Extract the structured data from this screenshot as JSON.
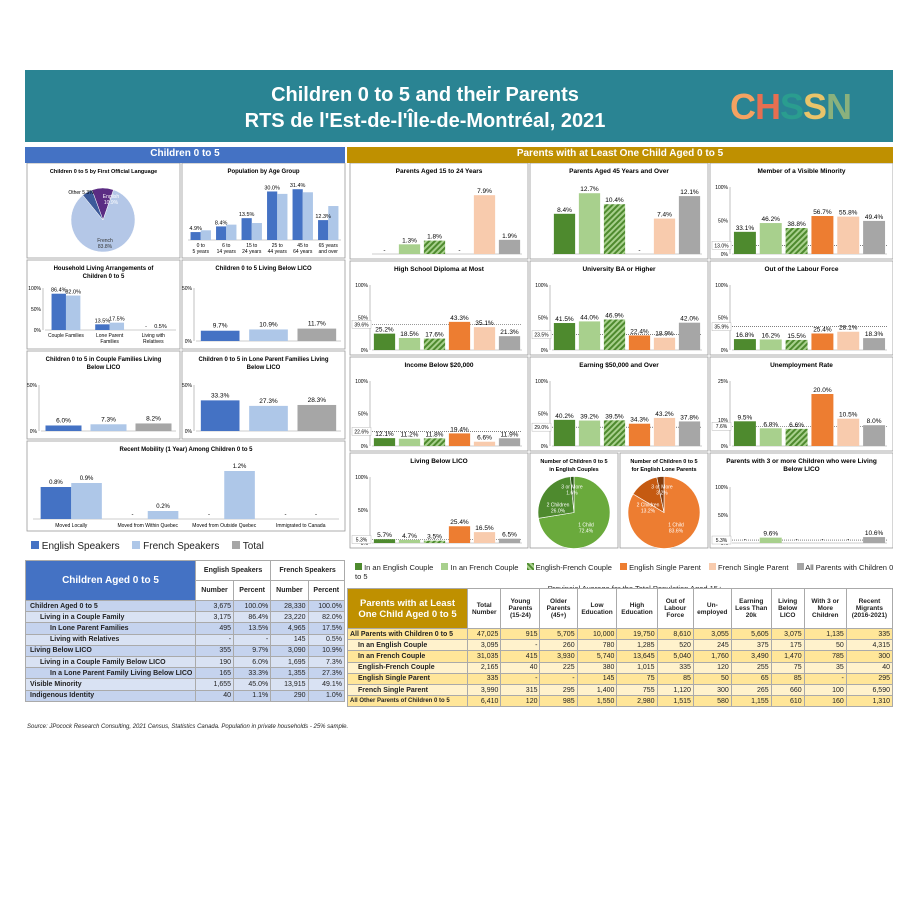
{
  "header": {
    "title_line1": "Children 0 to 5 and their Parents",
    "title_line2": "RTS de l'Est-de-l'Île-de-Montréal, 2021",
    "logo": "CHSSN"
  },
  "sections": {
    "left": "Children 0 to 5",
    "right": "Parents with at Least One Child Aged 0 to 5"
  },
  "colors": {
    "teal": "#2a8493",
    "blue_header": "#4472c4",
    "gold_header": "#bf9000",
    "eng": "#4472c4",
    "fr": "#aec7e8",
    "total": "#a6a6a6",
    "p_eng_couple": "#4e8a2e",
    "p_fr_couple": "#a8d08d",
    "p_ef_couple": "#4e8a2e",
    "p_eng_single": "#ed7d31",
    "p_fr_single": "#f8cbad",
    "p_all": "#a6a6a6"
  },
  "chart_data": [
    {
      "type": "pie",
      "title": "Children 0 to 5 by First Official Language",
      "labels": [
        "English",
        "French",
        "Other"
      ],
      "values": [
        10.9,
        83.8,
        5.3
      ],
      "display": [
        "10.9%",
        "83.8%",
        "5.3%"
      ]
    },
    {
      "type": "bar",
      "title": "Population by Age Group",
      "categories": [
        "0 to 5 years",
        "6 to 14 years",
        "15 to 24 years",
        "25 to 44 years",
        "45 to 64 years",
        "65 years and over"
      ],
      "series": [
        {
          "name": "English Speakers",
          "values": [
            4.9,
            8.4,
            13.5,
            30.0,
            31.4,
            12.3
          ],
          "labels": [
            "4.9%",
            "8.4%",
            "13.5%",
            "30.0%",
            "31.4%",
            "12.3%"
          ]
        },
        {
          "name": "French Speakers",
          "values": [
            6.0,
            9.5,
            10.5,
            28.5,
            29.5,
            21.0
          ]
        }
      ]
    },
    {
      "type": "bar",
      "title": "Household Living Arrangements of Children 0 to 5",
      "categories": [
        "Couple Families",
        "Lone Parent Families",
        "Living with Relatives"
      ],
      "ylim": [
        0,
        100
      ],
      "yticks": [
        "100%",
        "50%",
        "0%"
      ],
      "series": [
        {
          "name": "English Speakers",
          "values": [
            86.4,
            13.5,
            0
          ],
          "labels": [
            "86.4%",
            "13.5%",
            "-"
          ]
        },
        {
          "name": "French Speakers",
          "values": [
            82.0,
            17.5,
            0.5
          ],
          "labels": [
            "82.0%",
            "17.5%",
            "0.5%"
          ]
        }
      ]
    },
    {
      "type": "bar",
      "title": "Children 0 to 5 Living Below LICO",
      "ylim": [
        0,
        50
      ],
      "yticks": [
        "50%",
        "0%"
      ],
      "series": [
        {
          "name": "English Speakers",
          "values": [
            9.7
          ],
          "labels": [
            "9.7%"
          ]
        },
        {
          "name": "French Speakers",
          "values": [
            10.9
          ],
          "labels": [
            "10.9%"
          ]
        },
        {
          "name": "Total",
          "values": [
            11.7
          ],
          "labels": [
            "11.7%"
          ]
        }
      ]
    },
    {
      "type": "bar",
      "title": "Children 0 to 5 in Couple Families Living Below LICO",
      "ylim": [
        0,
        50
      ],
      "yticks": [
        "50%",
        "0%"
      ],
      "series": [
        {
          "name": "English Speakers",
          "values": [
            6.0
          ],
          "labels": [
            "6.0%"
          ]
        },
        {
          "name": "French Speakers",
          "values": [
            7.3
          ],
          "labels": [
            "7.3%"
          ]
        },
        {
          "name": "Total",
          "values": [
            8.2
          ],
          "labels": [
            "8.2%"
          ]
        }
      ]
    },
    {
      "type": "bar",
      "title": "Children 0 to 5 in Lone Parent Families Living Below LICO",
      "ylim": [
        0,
        50
      ],
      "yticks": [
        "50%",
        "0%"
      ],
      "series": [
        {
          "name": "English Speakers",
          "values": [
            33.3
          ],
          "labels": [
            "33.3%"
          ]
        },
        {
          "name": "French Speakers",
          "values": [
            27.3
          ],
          "labels": [
            "27.3%"
          ]
        },
        {
          "name": "Total",
          "values": [
            28.3
          ],
          "labels": [
            "28.3%"
          ]
        }
      ]
    },
    {
      "type": "bar",
      "title": "Recent Mobility (1 Year) Among Children 0 to 5",
      "categories": [
        "Moved Locally",
        "Moved from Within Quebec",
        "Moved from Outside Quebec",
        "Immigrated to Canada"
      ],
      "series": [
        {
          "name": "English Speakers",
          "values": [
            0.8,
            0,
            0,
            0
          ],
          "labels": [
            "0.8%",
            "-",
            "-",
            "-"
          ]
        },
        {
          "name": "French Speakers",
          "values": [
            0.9,
            0.2,
            1.2,
            0
          ],
          "labels": [
            "0.9%",
            "0.2%",
            "1.2%",
            "-"
          ]
        }
      ]
    },
    {
      "type": "bar",
      "title": "Parents Aged 15 to 24 Years",
      "series_values": [
        0,
        1.3,
        1.8,
        0,
        7.9,
        1.9
      ],
      "labels": [
        "-",
        "1.3%",
        "1.8%",
        "-",
        "7.9%",
        "1.9%"
      ],
      "ymax": 9
    },
    {
      "type": "bar",
      "title": "Parents Aged 45 Years and Over",
      "series_values": [
        8.4,
        12.7,
        10.4,
        0,
        7.4,
        12.1
      ],
      "labels": [
        "8.4%",
        "12.7%",
        "10.4%",
        "-",
        "7.4%",
        "12.1%"
      ],
      "ymax": 14
    },
    {
      "type": "bar",
      "title": "Member of a Visible Minority",
      "ylim": [
        0,
        100
      ],
      "yticks": [
        "100%",
        "50%",
        "0%"
      ],
      "provincial": "13.0%",
      "provincial_value": 13.0,
      "series_values": [
        33.1,
        46.2,
        38.8,
        56.7,
        55.8,
        49.4
      ],
      "labels": [
        "33.1%",
        "46.2%",
        "38.8%",
        "56.7%",
        "55.8%",
        "49.4%"
      ]
    },
    {
      "type": "bar",
      "title": "High School Diploma at Most",
      "ylim": [
        0,
        100
      ],
      "yticks": [
        "100%",
        "50%",
        "0%"
      ],
      "provincial": "39.6%",
      "provincial_value": 39.6,
      "series_values": [
        25.2,
        18.5,
        17.6,
        43.3,
        35.1,
        21.3
      ],
      "labels": [
        "25.2%",
        "18.5%",
        "17.6%",
        "43.3%",
        "35.1%",
        "21.3%"
      ]
    },
    {
      "type": "bar",
      "title": "University BA or Higher",
      "ylim": [
        0,
        100
      ],
      "yticks": [
        "100%",
        "50%",
        "0%"
      ],
      "provincial": "23.5%",
      "provincial_value": 23.5,
      "series_values": [
        41.5,
        44.0,
        46.9,
        22.4,
        18.9,
        42.0
      ],
      "labels": [
        "41.5%",
        "44.0%",
        "46.9%",
        "22.4%",
        "18.9%",
        "42.0%"
      ]
    },
    {
      "type": "bar",
      "title": "Out of the Labour Force",
      "ylim": [
        0,
        100
      ],
      "yticks": [
        "100%",
        "50%",
        "0%"
      ],
      "provincial": "35.9%",
      "provincial_value": 35.9,
      "series_values": [
        16.8,
        16.2,
        15.5,
        25.4,
        28.1,
        18.3
      ],
      "labels": [
        "16.8%",
        "16.2%",
        "15.5%",
        "25.4%",
        "28.1%",
        "18.3%"
      ]
    },
    {
      "type": "bar",
      "title": "Income Below $20,000",
      "ylim": [
        0,
        100
      ],
      "yticks": [
        "100%",
        "50%",
        "0%"
      ],
      "provincial": "22.6%",
      "provincial_value": 22.6,
      "series_values": [
        12.1,
        11.2,
        11.8,
        19.4,
        6.6,
        11.9
      ],
      "labels": [
        "12.1%",
        "11.2%",
        "11.8%",
        "19.4%",
        "6.6%",
        "11.9%"
      ]
    },
    {
      "type": "bar",
      "title": "Earning $50,000 and Over",
      "ylim": [
        0,
        100
      ],
      "yticks": [
        "100%",
        "50%",
        "0%"
      ],
      "provincial": "29.0%",
      "provincial_value": 29.0,
      "series_values": [
        40.2,
        39.2,
        39.5,
        34.3,
        43.2,
        37.8
      ],
      "labels": [
        "40.2%",
        "39.2%",
        "39.5%",
        "34.3%",
        "43.2%",
        "37.8%"
      ]
    },
    {
      "type": "bar",
      "title": "Unemployment Rate",
      "ylim": [
        0,
        25
      ],
      "yticks": [
        "25%",
        "10%",
        "0%"
      ],
      "provincial": "7.6%",
      "provincial_value": 7.6,
      "series_values": [
        9.5,
        6.8,
        6.6,
        20.0,
        10.5,
        8.0
      ],
      "labels": [
        "9.5%",
        "6.8%",
        "6.6%",
        "20.0%",
        "10.5%",
        "8.0%"
      ]
    },
    {
      "type": "bar",
      "title": "Living Below LICO",
      "ylim": [
        0,
        100
      ],
      "yticks": [
        "100%",
        "50%",
        "0%"
      ],
      "provincial": "5.3%",
      "provincial_value": 5.3,
      "series_values": [
        5.7,
        4.7,
        3.5,
        25.4,
        16.5,
        6.5
      ],
      "labels": [
        "5.7%",
        "4.7%",
        "3.5%",
        "25.4%",
        "16.5%",
        "6.5%"
      ]
    },
    {
      "type": "pie",
      "title": "Number of Children 0 to 5 in English Couples",
      "labels": [
        "1 Child",
        "2 Children",
        "3 or More"
      ],
      "values": [
        72.4,
        26.0,
        1.6
      ],
      "display": [
        "72.4%",
        "26.0%",
        "1.6%"
      ]
    },
    {
      "type": "pie",
      "title": "Number of Children 0 to 5 for English Lone Parents",
      "labels": [
        "1 Child",
        "2 Children",
        "3 or More"
      ],
      "values": [
        83.6,
        13.2,
        3.2
      ],
      "display": [
        "83.6%",
        "13.2%",
        "3.2%"
      ]
    },
    {
      "type": "bar",
      "title": "Parents with 3 or more Children who were Living Below LICO",
      "ylim": [
        0,
        100
      ],
      "yticks": [
        "100%",
        "50%",
        "0%"
      ],
      "provincial": "5.3%",
      "provincial_value": 5.3,
      "series_values": [
        0,
        9.6,
        0,
        0,
        0,
        10.6
      ],
      "labels": [
        "-",
        "9.6%",
        "-",
        "-",
        "-",
        "10.6%"
      ]
    }
  ],
  "legend_left": [
    "English Speakers",
    "French Speakers",
    "Total"
  ],
  "legend_right": [
    "In an English Couple",
    "In an French Couple",
    "English-French Couple",
    "English Single Parent",
    "French Single Parent",
    "All Parents with Children 0 to 5"
  ],
  "provincial_note": "Provincial Average for the Total Population Aged 15+",
  "left_table": {
    "title": "Children Aged 0 to 5",
    "groups": [
      "English Speakers",
      "French Speakers"
    ],
    "cols": [
      "Number",
      "Percent",
      "Number",
      "Percent"
    ],
    "rows": [
      {
        "label": "Children Aged 0 to 5",
        "cells": [
          "3,675",
          "100.0%",
          "28,330",
          "100.0%"
        ]
      },
      {
        "label": "Living in a Couple Family",
        "cells": [
          "3,175",
          "86.4%",
          "23,220",
          "82.0%"
        ]
      },
      {
        "label": "In Lone Parent Families",
        "cells": [
          "495",
          "13.5%",
          "4,965",
          "17.5%"
        ]
      },
      {
        "label": "Living with Relatives",
        "cells": [
          "-",
          "-",
          "145",
          "0.5%"
        ]
      },
      {
        "label": "Living Below LICO",
        "cells": [
          "355",
          "9.7%",
          "3,090",
          "10.9%"
        ]
      },
      {
        "label": "Living in a Couple Family Below LICO",
        "cells": [
          "190",
          "6.0%",
          "1,695",
          "7.3%"
        ]
      },
      {
        "label": "In a Lone Parent Family Living Below LICO",
        "cells": [
          "165",
          "33.3%",
          "1,355",
          "27.3%"
        ]
      },
      {
        "label": "Visible Minority",
        "cells": [
          "1,655",
          "45.0%",
          "13,915",
          "49.1%"
        ]
      },
      {
        "label": "Indigenous Identity",
        "cells": [
          "40",
          "1.1%",
          "290",
          "1.0%"
        ]
      }
    ]
  },
  "right_table": {
    "title": "Parents with at Least One Child Aged 0 to 5",
    "cols": [
      "Total Number",
      "Young Parents (15-24)",
      "Older Parents (45+)",
      "Low Education",
      "High Education",
      "Out of Labour Force",
      "Un-employed",
      "Earning Less Than 20k",
      "Living Below LICO",
      "With 3 or More Children",
      "Recent Migrants (2016-2021)"
    ],
    "rows": [
      {
        "label": "All Parents with Children 0 to 5",
        "cells": [
          "47,025",
          "915",
          "5,705",
          "10,000",
          "19,750",
          "8,610",
          "3,055",
          "5,605",
          "3,075",
          "1,135",
          "335"
        ]
      },
      {
        "label": "In an English Couple",
        "cells": [
          "3,095",
          "-",
          "260",
          "780",
          "1,285",
          "520",
          "245",
          "375",
          "175",
          "50",
          "4,315"
        ]
      },
      {
        "label": "In an French Couple",
        "cells": [
          "31,035",
          "415",
          "3,930",
          "5,740",
          "13,645",
          "5,040",
          "1,760",
          "3,490",
          "1,470",
          "785",
          "300"
        ]
      },
      {
        "label": "English-French Couple",
        "cells": [
          "2,165",
          "40",
          "225",
          "380",
          "1,015",
          "335",
          "120",
          "255",
          "75",
          "35",
          "40"
        ]
      },
      {
        "label": "English Single Parent",
        "cells": [
          "335",
          "-",
          "-",
          "145",
          "75",
          "85",
          "50",
          "65",
          "85",
          "-",
          "295"
        ]
      },
      {
        "label": "French Single Parent",
        "cells": [
          "3,990",
          "315",
          "295",
          "1,400",
          "755",
          "1,120",
          "300",
          "265",
          "660",
          "100",
          "6,590"
        ]
      },
      {
        "label": "All Other Parents of Children 0 to 5",
        "cells": [
          "6,410",
          "120",
          "985",
          "1,550",
          "2,980",
          "1,515",
          "580",
          "1,155",
          "610",
          "160",
          "1,310"
        ]
      }
    ]
  },
  "source": "Source: JPocock Research Consulting, 2021 Census, Statistics Canada. Population in private households - 25% sample."
}
